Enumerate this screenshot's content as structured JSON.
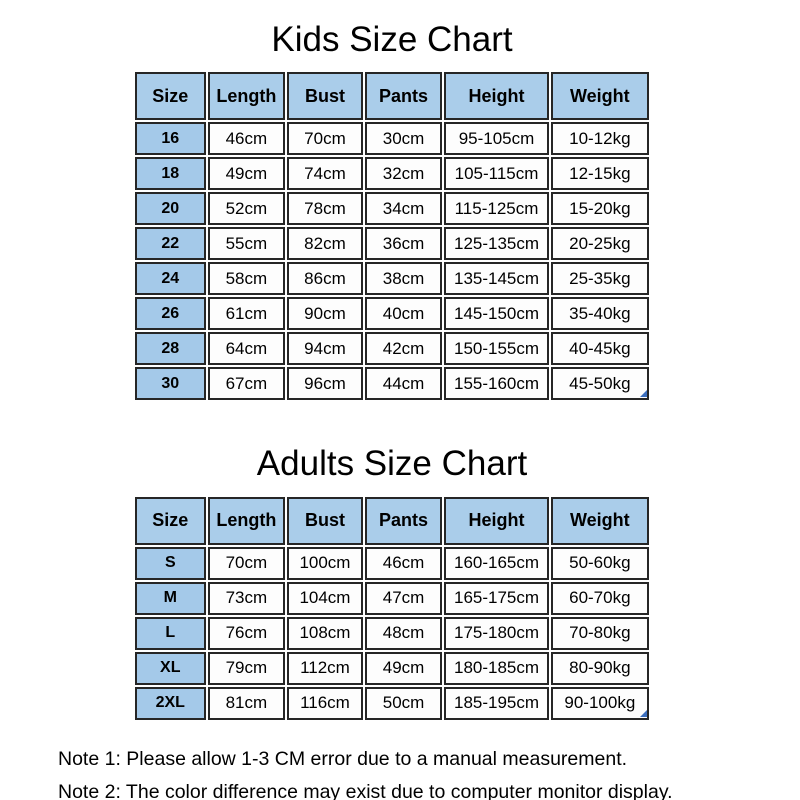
{
  "colors": {
    "header_bg": "#aacdea",
    "size_column_bg": "#a4c9e9",
    "cell_bg": "#fdfdfd",
    "border": "#262626",
    "corner_mark": "#3c6fbe",
    "text": "#000000",
    "page_bg": "#ffffff"
  },
  "kids": {
    "title": "Kids Size Chart",
    "columns": [
      "Size",
      "Length",
      "Bust",
      "Pants",
      "Height",
      "Weight"
    ],
    "rows": [
      [
        "16",
        "46cm",
        "70cm",
        "30cm",
        "95-105cm",
        "10-12kg"
      ],
      [
        "18",
        "49cm",
        "74cm",
        "32cm",
        "105-115cm",
        "12-15kg"
      ],
      [
        "20",
        "52cm",
        "78cm",
        "34cm",
        "115-125cm",
        "15-20kg"
      ],
      [
        "22",
        "55cm",
        "82cm",
        "36cm",
        "125-135cm",
        "20-25kg"
      ],
      [
        "24",
        "58cm",
        "86cm",
        "38cm",
        "135-145cm",
        "25-35kg"
      ],
      [
        "26",
        "61cm",
        "90cm",
        "40cm",
        "145-150cm",
        "35-40kg"
      ],
      [
        "28",
        "64cm",
        "94cm",
        "42cm",
        "150-155cm",
        "40-45kg"
      ],
      [
        "30",
        "67cm",
        "96cm",
        "44cm",
        "155-160cm",
        "45-50kg"
      ]
    ]
  },
  "adults": {
    "title": "Adults Size Chart",
    "columns": [
      "Size",
      "Length",
      "Bust",
      "Pants",
      "Height",
      "Weight"
    ],
    "rows": [
      [
        "S",
        "70cm",
        "100cm",
        "46cm",
        "160-165cm",
        "50-60kg"
      ],
      [
        "M",
        "73cm",
        "104cm",
        "47cm",
        "165-175cm",
        "60-70kg"
      ],
      [
        "L",
        "76cm",
        "108cm",
        "48cm",
        "175-180cm",
        "70-80kg"
      ],
      [
        "XL",
        "79cm",
        "112cm",
        "49cm",
        "180-185cm",
        "80-90kg"
      ],
      [
        "2XL",
        "81cm",
        "116cm",
        "50cm",
        "185-195cm",
        "90-100kg"
      ]
    ]
  },
  "notes": [
    "Note 1: Please allow 1-3 CM error due to a manual measurement.",
    "Note 2: The color difference may exist due to computer monitor display."
  ]
}
